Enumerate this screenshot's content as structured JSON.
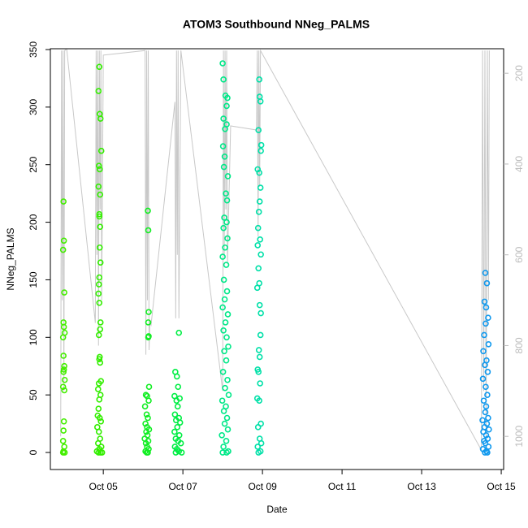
{
  "chart_data": {
    "type": "scatter",
    "title": "ATOM3 Southbound NNeg_PALMS",
    "x_label": "Date",
    "y_label": "NNeg_PALMS",
    "xlim": [
      3.67,
      15.06
    ],
    "xticks": [
      {
        "value": 5,
        "label": "Oct 05"
      },
      {
        "value": 7,
        "label": "Oct 07"
      },
      {
        "value": 9,
        "label": "Oct 09"
      },
      {
        "value": 11,
        "label": "Oct 11"
      },
      {
        "value": 13,
        "label": "Oct 13"
      },
      {
        "value": 15,
        "label": "Oct 15"
      }
    ],
    "ylim": [
      -14.8,
      350.7
    ],
    "yticks": [
      0,
      50,
      100,
      150,
      200,
      250,
      300,
      350
    ],
    "y2lim": [
      1073,
      146
    ],
    "y2ticks": [
      200,
      400,
      600,
      800,
      1000
    ],
    "grid": false,
    "series": [
      {
        "color": "#44ee00",
        "x": [
          4.0,
          4.01,
          3.99,
          4.02,
          4.0,
          4.01,
          4.03,
          3.99,
          4.0,
          4.02,
          4.01,
          4.0,
          4.03,
          3.99,
          4.02,
          4.01,
          4.0,
          3.99,
          4.02,
          4.0,
          4.03,
          3.99
        ],
        "values": [
          218,
          184,
          176,
          139,
          113,
          109,
          104,
          100,
          84,
          75,
          72,
          70,
          63,
          57,
          54,
          27,
          19,
          10,
          5,
          1,
          0,
          0
        ]
      },
      {
        "color": "#33ee00",
        "x": [
          4.9,
          4.88,
          4.91,
          4.93,
          4.95,
          4.89,
          4.91,
          4.88,
          4.92,
          4.9,
          4.9,
          4.92,
          4.91,
          4.93,
          4.9,
          4.89,
          4.88,
          4.9,
          4.93,
          4.92,
          4.89,
          4.91,
          4.9,
          4.92,
          4.94,
          4.89,
          4.87,
          4.93,
          4.9,
          4.88,
          4.86,
          4.91,
          4.94,
          4.85,
          4.89,
          4.92,
          4.87,
          4.95,
          4.9,
          4.84,
          4.88,
          4.93,
          4.97
        ],
        "values": [
          335,
          314,
          294,
          290,
          262,
          249,
          246,
          231,
          224,
          207,
          205,
          196,
          178,
          165,
          152,
          146,
          138,
          130,
          113,
          107,
          102,
          83,
          81,
          78,
          62,
          60,
          55,
          50,
          46,
          38,
          32,
          30,
          27,
          22,
          18,
          12,
          8,
          5,
          3,
          1,
          0,
          0,
          0
        ]
      },
      {
        "color": "#11ee22",
        "x": [
          6.12,
          6.13,
          6.14,
          6.13,
          6.14,
          6.13,
          6.15,
          6.07,
          6.1,
          6.14,
          6.05,
          6.09,
          6.12,
          6.06,
          6.1,
          6.15,
          6.08,
          6.11,
          6.04,
          6.13,
          6.07,
          6.1,
          6.14,
          6.06,
          6.09,
          6.12
        ],
        "values": [
          210,
          193,
          122,
          113,
          101,
          100,
          57,
          50,
          49,
          45,
          40,
          33,
          30,
          25,
          22,
          20,
          18,
          15,
          12,
          10,
          8,
          5,
          3,
          1,
          0,
          0
        ]
      },
      {
        "color": "#00ee44",
        "x": [
          6.9,
          6.81,
          6.85,
          6.88,
          6.79,
          6.92,
          6.84,
          6.87,
          6.8,
          6.9,
          6.83,
          6.93,
          6.86,
          6.79,
          6.91,
          6.82,
          6.88,
          6.95,
          6.8,
          6.85,
          6.9,
          6.82,
          6.97
        ],
        "values": [
          104,
          70,
          66,
          57,
          49,
          47,
          45,
          40,
          33,
          30,
          28,
          26,
          22,
          18,
          15,
          12,
          10,
          8,
          5,
          3,
          1,
          0,
          0
        ]
      },
      {
        "color": "#00e888",
        "x": [
          8.0,
          8.02,
          8.07,
          8.12,
          8.1,
          8.02,
          8.1,
          8.06,
          8.01,
          8.05,
          8.03,
          8.13,
          8.08,
          8.11,
          8.04,
          8.1,
          8.02,
          8.12,
          8.06,
          8.0,
          8.09,
          8.03,
          8.11,
          8.05,
          8.0,
          8.13,
          8.07,
          8.02,
          8.1,
          8.14,
          8.04,
          8.09,
          8.01,
          8.12,
          8.06,
          8.15,
          7.99,
          8.08,
          8.03,
          8.11,
          8.05,
          8.13,
          7.98,
          8.09,
          8.02,
          8.14,
          8.0,
          8.1
        ],
        "values": [
          338,
          324,
          310,
          308,
          301,
          290,
          285,
          281,
          266,
          257,
          248,
          240,
          225,
          219,
          204,
          200,
          195,
          186,
          178,
          170,
          163,
          150,
          140,
          133,
          126,
          120,
          113,
          106,
          100,
          92,
          88,
          80,
          70,
          63,
          56,
          50,
          45,
          40,
          36,
          30,
          25,
          20,
          15,
          10,
          5,
          1,
          0,
          0
        ]
      },
      {
        "color": "#00e0a8",
        "x": [
          8.92,
          8.93,
          8.95,
          8.9,
          8.97,
          8.96,
          8.88,
          8.92,
          8.95,
          8.93,
          8.91,
          8.89,
          8.94,
          8.88,
          8.96,
          8.9,
          8.92,
          8.87,
          8.93,
          8.96,
          8.95,
          8.91,
          8.93,
          8.88,
          8.9,
          8.94,
          8.87,
          8.92,
          8.96,
          8.89,
          8.93,
          8.97,
          8.88,
          8.95,
          8.9
        ],
        "values": [
          324,
          309,
          305,
          280,
          267,
          262,
          246,
          243,
          230,
          218,
          209,
          195,
          185,
          180,
          172,
          160,
          147,
          143,
          128,
          121,
          102,
          89,
          83,
          72,
          70,
          60,
          47,
          45,
          25,
          22,
          12,
          8,
          5,
          1,
          0
        ]
      },
      {
        "color": "#1199ee",
        "x": [
          14.6,
          14.64,
          14.58,
          14.62,
          14.67,
          14.61,
          14.57,
          14.68,
          14.55,
          14.63,
          14.59,
          14.66,
          14.54,
          14.61,
          14.65,
          14.56,
          14.62,
          14.6,
          14.67,
          14.53,
          14.64,
          14.58,
          14.69,
          14.55,
          14.62,
          14.66,
          14.57,
          14.6,
          14.68,
          14.54,
          14.63,
          14.59,
          14.65
        ],
        "values": [
          156,
          147,
          131,
          126,
          117,
          112,
          102,
          94,
          88,
          80,
          76,
          70,
          64,
          57,
          50,
          45,
          40,
          35,
          30,
          28,
          25,
          22,
          20,
          18,
          15,
          12,
          10,
          8,
          5,
          3,
          1,
          0,
          0
        ]
      },
      {
        "color": "#c8c8c8",
        "axis": "y2",
        "x": [
          3.93,
          3.95,
          3.97,
          3.99,
          4.01,
          4.03,
          4.08,
          4.8,
          4.82,
          4.84,
          4.86,
          4.88,
          4.9,
          4.92,
          4.94,
          4.96,
          5.0,
          6.05,
          6.07,
          6.09,
          6.11,
          6.13,
          6.15,
          6.17,
          6.2,
          6.8,
          6.82,
          6.84,
          6.86,
          6.88,
          6.9,
          6.95,
          8.0,
          8.02,
          8.04,
          8.06,
          8.08,
          8.1,
          8.12,
          8.2,
          8.85,
          8.87,
          8.89,
          8.91,
          8.93,
          8.95,
          14.5,
          14.53,
          14.56,
          14.59,
          14.62,
          14.65,
          14.68,
          14.7
        ],
        "values": [
          1000,
          150,
          700,
          150,
          900,
          150,
          146,
          750,
          150,
          600,
          150,
          800,
          150,
          500,
          150,
          700,
          160,
          150,
          820,
          150,
          700,
          150,
          810,
          750,
          755,
          263,
          740,
          150,
          600,
          150,
          740,
          150,
          900,
          150,
          600,
          150,
          500,
          150,
          620,
          316,
          325,
          150,
          560,
          150,
          450,
          150,
          1030,
          150,
          900,
          150,
          1000,
          150,
          700,
          150
        ]
      }
    ]
  }
}
